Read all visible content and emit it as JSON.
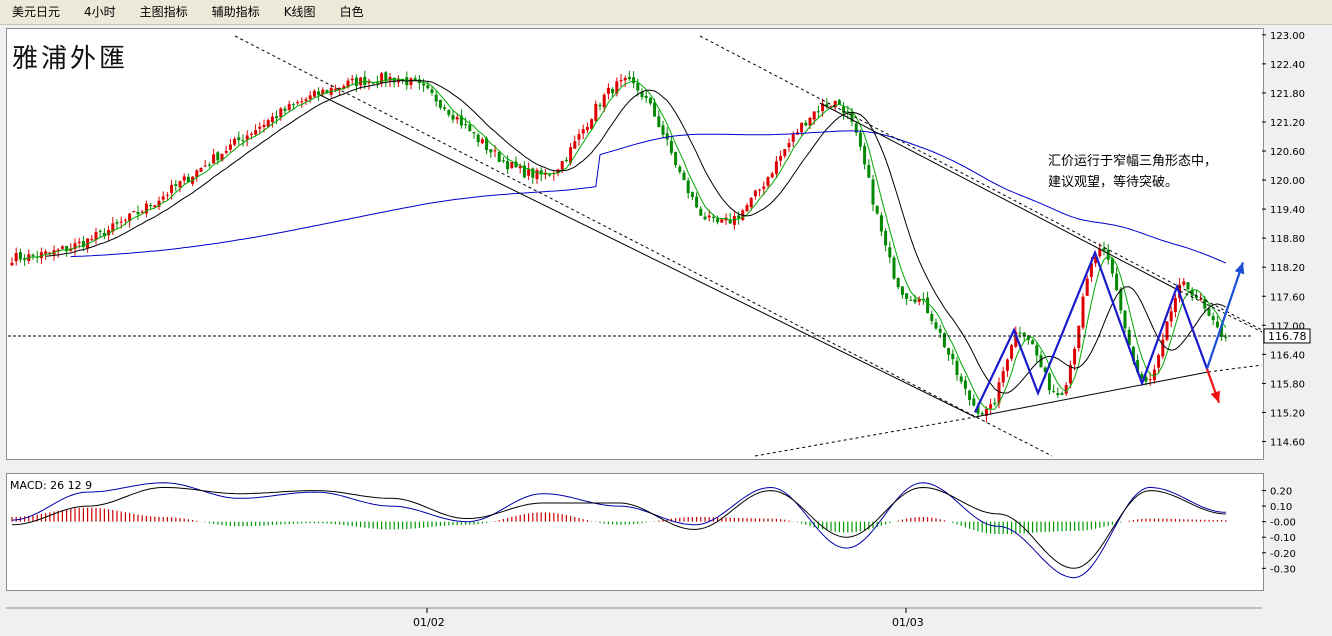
{
  "toolbar": {
    "items": [
      "美元日元",
      "4小时",
      "主图指标",
      "辅助指标",
      "K线图",
      "白色"
    ]
  },
  "main_chart": {
    "logo_text": "雅浦外匯",
    "annotation_line1": "汇价运行于窄幅三角形态中，",
    "annotation_line2": "建议观望，等待突破。",
    "current_price_label": "116.78"
  },
  "macd_panel": {
    "label": "MACD: 26 12 9"
  },
  "colors": {
    "candle_up": "#dd0000",
    "candle_down": "#008800",
    "ma_short": "#00aa00",
    "ma_mid": "#000000",
    "ma_long": "#0000cc",
    "pattern": "#1a1acc",
    "arrow_up": "#1a4fd6",
    "arrow_down": "#ee1111",
    "macd_pos": "#cc0000",
    "macd_neg": "#009900"
  },
  "chart_data": [
    {
      "type": "candlestick",
      "symbol": "美元日元",
      "timeframe": "4小时",
      "ylim": [
        114.3,
        123.1
      ],
      "y_ticks": [
        "123.00",
        "122.40",
        "121.80",
        "121.20",
        "120.60",
        "120.00",
        "119.40",
        "118.80",
        "118.20",
        "117.60",
        "117.00",
        "116.40",
        "115.80",
        "115.20",
        "114.60"
      ],
      "x_ticks": [
        "01/02",
        "01/03"
      ],
      "current_price": 116.78,
      "swing_points": [
        {
          "label": "start",
          "price": 118.4
        },
        {
          "label": "high",
          "price": 122.1
        },
        {
          "label": "low",
          "price": 120.1
        },
        {
          "label": "high",
          "price": 122.0
        },
        {
          "label": "low",
          "price": 119.1
        },
        {
          "label": "high",
          "price": 121.6
        },
        {
          "label": "drop",
          "price": 117.6
        },
        {
          "label": "low",
          "price": 115.2
        },
        {
          "label": "high",
          "price": 116.9
        },
        {
          "label": "low",
          "price": 115.6
        },
        {
          "label": "high",
          "price": 118.5
        },
        {
          "label": "low",
          "price": 115.8
        },
        {
          "label": "high",
          "price": 117.8
        },
        {
          "label": "last",
          "price": 116.8
        }
      ],
      "pattern_points": [
        115.2,
        116.9,
        115.6,
        118.5,
        115.8,
        117.8,
        116.1
      ],
      "breakout_targets": {
        "up": 118.3,
        "down": 115.4
      }
    },
    {
      "type": "macd",
      "params": "26 12 9",
      "ylim": [
        -0.42,
        0.3
      ],
      "y_ticks": [
        "0.20",
        "0.10",
        "-0.00",
        "-0.10",
        "-0.20",
        "-0.30"
      ],
      "macd_line": [
        0.01,
        0.19,
        0.25,
        0.15,
        0.19,
        0.1,
        -0.0,
        0.18,
        0.1,
        -0.02,
        0.22,
        -0.17,
        0.25,
        -0.03,
        -0.36,
        0.22,
        0.06
      ],
      "signal_line": [
        -0.02,
        0.1,
        0.22,
        0.18,
        0.2,
        0.15,
        0.02,
        0.12,
        0.12,
        -0.05,
        0.2,
        -0.1,
        0.22,
        0.05,
        -0.3,
        0.2,
        0.05
      ],
      "histogram": [
        0.03,
        0.09,
        0.03,
        -0.03,
        -0.01,
        -0.05,
        -0.02,
        0.06,
        -0.02,
        0.03,
        0.02,
        -0.07,
        0.03,
        -0.08,
        -0.06,
        0.02,
        0.01
      ]
    }
  ]
}
